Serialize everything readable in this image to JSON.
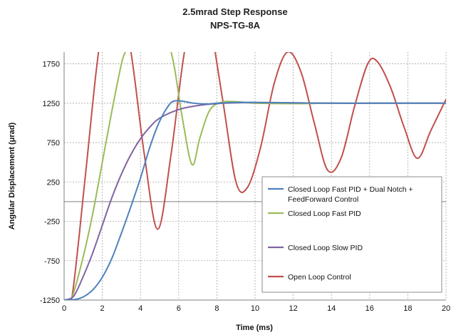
{
  "chart_data": {
    "type": "line",
    "title": "2.5mrad Step Response",
    "subtitle": "NPS-TG-8A",
    "xlabel": "Time (ms)",
    "ylabel": "Angular Displacement (μrad)",
    "xlim": [
      0,
      20
    ],
    "ylim": [
      -1250,
      1900
    ],
    "xticks": [
      0,
      2,
      4,
      6,
      8,
      10,
      12,
      14,
      16,
      18,
      20
    ],
    "yticks": [
      -1250,
      -750,
      -250,
      250,
      750,
      1250,
      1750
    ],
    "grid": true,
    "legend_position": "bottom-right",
    "series": [
      {
        "name": "Closed Loop Fast PID + Dual Notch + FeedForward Control",
        "color": "#4f81bd",
        "x": [
          0,
          0.5,
          1,
          1.5,
          2,
          2.5,
          3,
          3.5,
          4,
          4.5,
          5,
          5.5,
          5.8,
          6.2,
          6.8,
          7.5,
          8,
          9,
          10,
          12,
          14,
          16,
          18,
          20
        ],
        "y": [
          -1250,
          -1245,
          -1210,
          -1120,
          -960,
          -720,
          -400,
          -60,
          300,
          700,
          1020,
          1230,
          1280,
          1275,
          1250,
          1240,
          1250,
          1260,
          1260,
          1255,
          1250,
          1250,
          1250,
          1250
        ]
      },
      {
        "name": "Closed Loop Fast PID",
        "color": "#9bbb59",
        "x": [
          0,
          0.4,
          1,
          1.5,
          2,
          2.5,
          3,
          3.2,
          3.4,
          4.4,
          5.2,
          5.7,
          6.2,
          6.7,
          7.1,
          7.6,
          8.2,
          9,
          10,
          12,
          14,
          16,
          18,
          20
        ],
        "y": [
          -1250,
          -1220,
          -700,
          -150,
          500,
          1150,
          1750,
          1900,
          2050,
          2200,
          2150,
          1800,
          1050,
          470,
          800,
          1150,
          1260,
          1270,
          1250,
          1245,
          1250,
          1250,
          1250,
          1250
        ]
      },
      {
        "name": "Closed Loop Slow PID",
        "color": "#8064a2",
        "x": [
          0,
          0.5,
          1,
          1.5,
          2,
          2.5,
          3,
          3.5,
          4,
          4.5,
          5,
          6,
          7,
          8,
          9,
          10,
          12,
          14,
          16,
          18,
          20
        ],
        "y": [
          -1250,
          -1200,
          -950,
          -650,
          -300,
          50,
          350,
          600,
          800,
          950,
          1060,
          1170,
          1220,
          1245,
          1255,
          1260,
          1255,
          1250,
          1250,
          1250,
          1250
        ]
      },
      {
        "name": "Open Loop Control",
        "color": "#c0504d",
        "x": [
          0,
          0.4,
          1.1,
          1.7,
          2.2,
          2.8,
          3.5,
          4.2,
          4.9,
          5.6,
          6.3,
          7.0,
          7.6,
          8.3,
          9.0,
          9.6,
          10.3,
          11.0,
          11.7,
          12.4,
          13.1,
          13.8,
          14.5,
          15.2,
          15.9,
          16.4,
          17.1,
          17.8,
          18.5,
          19.2,
          20.0
        ],
        "y": [
          -1250,
          -1230,
          300,
          1700,
          2500,
          2700,
          1900,
          600,
          -350,
          600,
          1900,
          2600,
          2300,
          1300,
          250,
          180,
          700,
          1500,
          1900,
          1650,
          1000,
          400,
          550,
          1200,
          1750,
          1780,
          1450,
          950,
          550,
          900,
          1300
        ]
      }
    ]
  }
}
